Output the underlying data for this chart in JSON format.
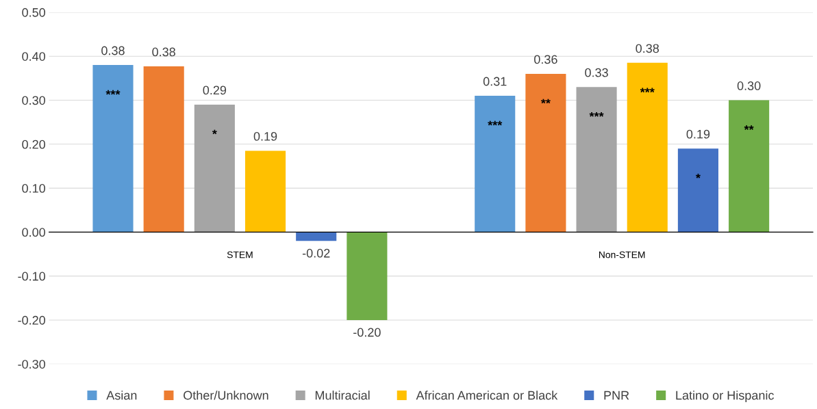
{
  "chart_data": {
    "type": "bar",
    "categories": [
      "STEM",
      "Non-STEM"
    ],
    "series": [
      {
        "name": "Asian",
        "color": "#5b9bd5",
        "values": [
          0.38,
          0.31
        ],
        "value_labels": [
          "0.38",
          "0.31"
        ]
      },
      {
        "name": "Other/Unknown",
        "color": "#ed7d31",
        "values": [
          0.377,
          0.36
        ],
        "value_labels": [
          "0.38",
          "0.36"
        ]
      },
      {
        "name": "Multiracial",
        "color": "#a5a5a5",
        "values": [
          0.29,
          0.33
        ],
        "value_labels": [
          "0.29",
          "0.33"
        ]
      },
      {
        "name": "African American or Black",
        "color": "#ffc000",
        "values": [
          0.185,
          0.385
        ],
        "value_labels": [
          "0.19",
          "0.38"
        ]
      },
      {
        "name": "PNR",
        "color": "#4472c4",
        "values": [
          -0.02,
          0.19
        ],
        "value_labels": [
          "-0.02",
          "0.19"
        ]
      },
      {
        "name": "Latino or Hispanic",
        "color": "#70ad47",
        "values": [
          -0.2,
          0.3
        ],
        "value_labels": [
          "-0.20",
          "0.30"
        ]
      }
    ],
    "ylim": [
      -0.3,
      0.5
    ],
    "yticks": [
      {
        "value": -0.3,
        "label": "-0.30"
      },
      {
        "value": -0.2,
        "label": "-0.20"
      },
      {
        "value": -0.1,
        "label": "-0.10"
      },
      {
        "value": 0,
        "label": "0.00"
      },
      {
        "value": 0.1,
        "label": "0.10"
      },
      {
        "value": 0.2,
        "label": "0.20"
      },
      {
        "value": 0.3,
        "label": "0.30"
      },
      {
        "value": 0.4,
        "label": "0.40"
      },
      {
        "value": 0.5,
        "label": "0.50"
      }
    ],
    "grid": "y",
    "legend": "bottom",
    "annotations": [
      "***",
      "*",
      "***",
      "**",
      "***",
      "***",
      "*",
      "**"
    ]
  }
}
